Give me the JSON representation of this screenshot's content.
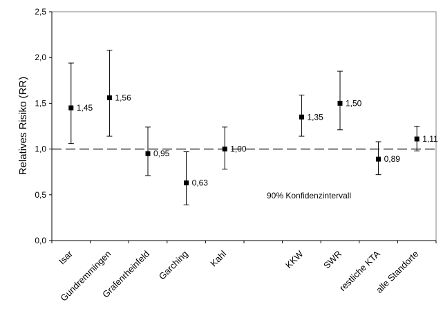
{
  "chart_data": {
    "type": "scatter",
    "subtype": "point-estimate-with-error-bars",
    "ylabel": "Relatives Risiko (RR)",
    "ylim": [
      0,
      2.5
    ],
    "yticks": [
      0,
      0.5,
      1.0,
      1.5,
      2.0,
      2.5
    ],
    "ytick_labels": [
      "0,0",
      "0,5",
      "1,0",
      "1,5",
      "2,0",
      "2,5"
    ],
    "reference_line": {
      "y": 1.0,
      "style": "dashed"
    },
    "annotation": "90% Konfidenzintervall",
    "grid": false,
    "legend": "none",
    "categories": [
      "Isar",
      "Gundremmingen",
      "Grafenrheinfeld",
      "Garching",
      "Kahl",
      "KKW",
      "SWR",
      "restliche KTA",
      "alle Standorte"
    ],
    "category_slots": [
      0,
      1,
      2,
      3,
      4,
      6,
      7,
      8,
      9
    ],
    "values": [
      1.45,
      1.56,
      0.95,
      0.63,
      1.0,
      1.35,
      1.5,
      0.89,
      1.11
    ],
    "value_labels": [
      "1,45",
      "1,56",
      "0,95",
      "0,63",
      "1,00",
      "1,35",
      "1,50",
      "0,89",
      "1,11"
    ],
    "lower": [
      1.06,
      1.14,
      0.71,
      0.39,
      0.78,
      1.14,
      1.21,
      0.72,
      0.98
    ],
    "upper": [
      1.94,
      2.08,
      1.24,
      0.97,
      1.24,
      1.59,
      1.85,
      1.08,
      1.25
    ]
  }
}
